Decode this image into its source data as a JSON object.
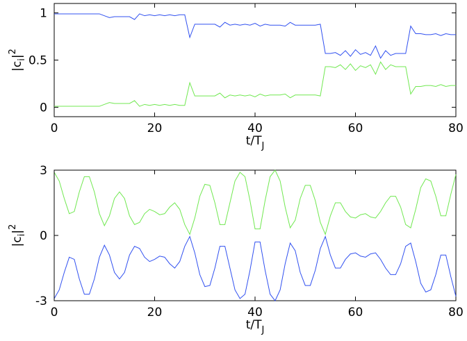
{
  "chart_data": [
    {
      "type": "line",
      "x": [
        0,
        1,
        2,
        3,
        4,
        5,
        6,
        7,
        8,
        9,
        10,
        11,
        12,
        13,
        14,
        15,
        16,
        17,
        18,
        19,
        20,
        21,
        22,
        23,
        24,
        25,
        26,
        27,
        28,
        29,
        30,
        31,
        32,
        33,
        34,
        35,
        36,
        37,
        38,
        39,
        40,
        41,
        42,
        43,
        44,
        45,
        46,
        47,
        48,
        49,
        50,
        51,
        52,
        53,
        54,
        55,
        56,
        57,
        58,
        59,
        60,
        61,
        62,
        63,
        64,
        65,
        66,
        67,
        68,
        69,
        70,
        71,
        72,
        73,
        74,
        75,
        76,
        77,
        78,
        79,
        80
      ],
      "series": [
        {
          "color": "#3050f0",
          "values": [
            0.99,
            0.99,
            0.99,
            0.99,
            0.99,
            0.99,
            0.99,
            0.99,
            0.99,
            0.99,
            0.97,
            0.95,
            0.96,
            0.96,
            0.96,
            0.96,
            0.93,
            0.99,
            0.97,
            0.98,
            0.97,
            0.98,
            0.97,
            0.98,
            0.97,
            0.98,
            0.98,
            0.74,
            0.88,
            0.88,
            0.88,
            0.88,
            0.88,
            0.85,
            0.9,
            0.87,
            0.88,
            0.87,
            0.88,
            0.87,
            0.89,
            0.86,
            0.88,
            0.87,
            0.87,
            0.87,
            0.86,
            0.9,
            0.87,
            0.87,
            0.87,
            0.87,
            0.87,
            0.88,
            0.57,
            0.57,
            0.58,
            0.55,
            0.6,
            0.54,
            0.61,
            0.56,
            0.58,
            0.55,
            0.65,
            0.52,
            0.6,
            0.55,
            0.57,
            0.57,
            0.57,
            0.86,
            0.78,
            0.78,
            0.77,
            0.77,
            0.78,
            0.76,
            0.78,
            0.77,
            0.77
          ]
        },
        {
          "color": "#70e850",
          "values": [
            0.01,
            0.01,
            0.01,
            0.01,
            0.01,
            0.01,
            0.01,
            0.01,
            0.01,
            0.01,
            0.03,
            0.05,
            0.04,
            0.04,
            0.04,
            0.04,
            0.07,
            0.01,
            0.03,
            0.02,
            0.03,
            0.02,
            0.03,
            0.02,
            0.03,
            0.02,
            0.02,
            0.26,
            0.12,
            0.12,
            0.12,
            0.12,
            0.12,
            0.15,
            0.1,
            0.13,
            0.12,
            0.13,
            0.12,
            0.13,
            0.11,
            0.14,
            0.12,
            0.13,
            0.13,
            0.13,
            0.14,
            0.1,
            0.13,
            0.13,
            0.13,
            0.13,
            0.13,
            0.12,
            0.43,
            0.43,
            0.42,
            0.45,
            0.4,
            0.46,
            0.39,
            0.44,
            0.42,
            0.45,
            0.35,
            0.48,
            0.4,
            0.45,
            0.43,
            0.43,
            0.43,
            0.14,
            0.22,
            0.22,
            0.23,
            0.23,
            0.22,
            0.24,
            0.22,
            0.23,
            0.23
          ]
        }
      ],
      "xlim": [
        0,
        80
      ],
      "xticks": [
        0,
        20,
        40,
        60,
        80
      ],
      "ylim": [
        -0.1,
        1.1
      ],
      "yticks": [
        0,
        0.5,
        1
      ],
      "xlabel": {
        "base": "t/T",
        "sub": "J"
      },
      "ylabel": {
        "base": "|c",
        "sub": "i",
        "close": "|",
        "sup": "2"
      }
    },
    {
      "type": "line",
      "x": [
        0,
        1,
        2,
        3,
        4,
        5,
        6,
        7,
        8,
        9,
        10,
        11,
        12,
        13,
        14,
        15,
        16,
        17,
        18,
        19,
        20,
        21,
        22,
        23,
        24,
        25,
        26,
        27,
        28,
        29,
        30,
        31,
        32,
        33,
        34,
        35,
        36,
        37,
        38,
        39,
        40,
        41,
        42,
        43,
        44,
        45,
        46,
        47,
        48,
        49,
        50,
        51,
        52,
        53,
        54,
        55,
        56,
        57,
        58,
        59,
        60,
        61,
        62,
        63,
        64,
        65,
        66,
        67,
        68,
        69,
        70,
        71,
        72,
        73,
        74,
        75,
        76,
        77,
        78,
        79,
        80
      ],
      "series": [
        {
          "color": "#70e850",
          "values": [
            2.9,
            2.5,
            1.7,
            1.0,
            1.1,
            2.0,
            2.7,
            2.7,
            2.0,
            1.0,
            0.45,
            0.9,
            1.7,
            2.0,
            1.7,
            0.9,
            0.5,
            0.6,
            1.0,
            1.2,
            1.1,
            0.95,
            1.0,
            1.3,
            1.5,
            1.2,
            0.5,
            0.05,
            0.8,
            1.8,
            2.35,
            2.3,
            1.5,
            0.5,
            0.5,
            1.5,
            2.5,
            2.9,
            2.7,
            1.6,
            0.3,
            0.3,
            1.6,
            2.7,
            3.0,
            2.5,
            1.3,
            0.35,
            0.7,
            1.7,
            2.3,
            2.3,
            1.6,
            0.6,
            0.05,
            0.9,
            1.5,
            1.5,
            1.1,
            0.85,
            0.8,
            0.95,
            1.0,
            0.85,
            0.8,
            1.1,
            1.5,
            1.8,
            1.8,
            1.3,
            0.5,
            0.35,
            1.2,
            2.2,
            2.6,
            2.5,
            1.8,
            0.9,
            0.9,
            1.9,
            2.8
          ]
        },
        {
          "color": "#3050f0",
          "values": [
            -2.9,
            -2.5,
            -1.7,
            -1.0,
            -1.1,
            -2.0,
            -2.7,
            -2.7,
            -2.0,
            -1.0,
            -0.45,
            -0.9,
            -1.7,
            -2.0,
            -1.7,
            -0.9,
            -0.5,
            -0.6,
            -1.0,
            -1.2,
            -1.1,
            -0.95,
            -1.0,
            -1.3,
            -1.5,
            -1.2,
            -0.5,
            -0.05,
            -0.8,
            -1.8,
            -2.35,
            -2.3,
            -1.5,
            -0.5,
            -0.5,
            -1.5,
            -2.5,
            -2.9,
            -2.7,
            -1.6,
            -0.3,
            -0.3,
            -1.6,
            -2.7,
            -3.0,
            -2.5,
            -1.3,
            -0.35,
            -0.7,
            -1.7,
            -2.3,
            -2.3,
            -1.6,
            -0.6,
            -0.05,
            -0.9,
            -1.5,
            -1.5,
            -1.1,
            -0.85,
            -0.8,
            -0.95,
            -1.0,
            -0.85,
            -0.8,
            -1.1,
            -1.5,
            -1.8,
            -1.8,
            -1.3,
            -0.5,
            -0.35,
            -1.2,
            -2.2,
            -2.6,
            -2.5,
            -1.8,
            -0.9,
            -0.9,
            -1.9,
            -2.8
          ]
        }
      ],
      "xlim": [
        0,
        80
      ],
      "xticks": [
        0,
        20,
        40,
        60,
        80
      ],
      "ylim": [
        -3,
        3
      ],
      "yticks": [
        -3,
        0,
        3
      ],
      "xlabel": {
        "base": "t/T",
        "sub": "J"
      },
      "ylabel": {
        "base": "|c",
        "sub": "i",
        "close": "|",
        "sup": "2"
      }
    }
  ]
}
